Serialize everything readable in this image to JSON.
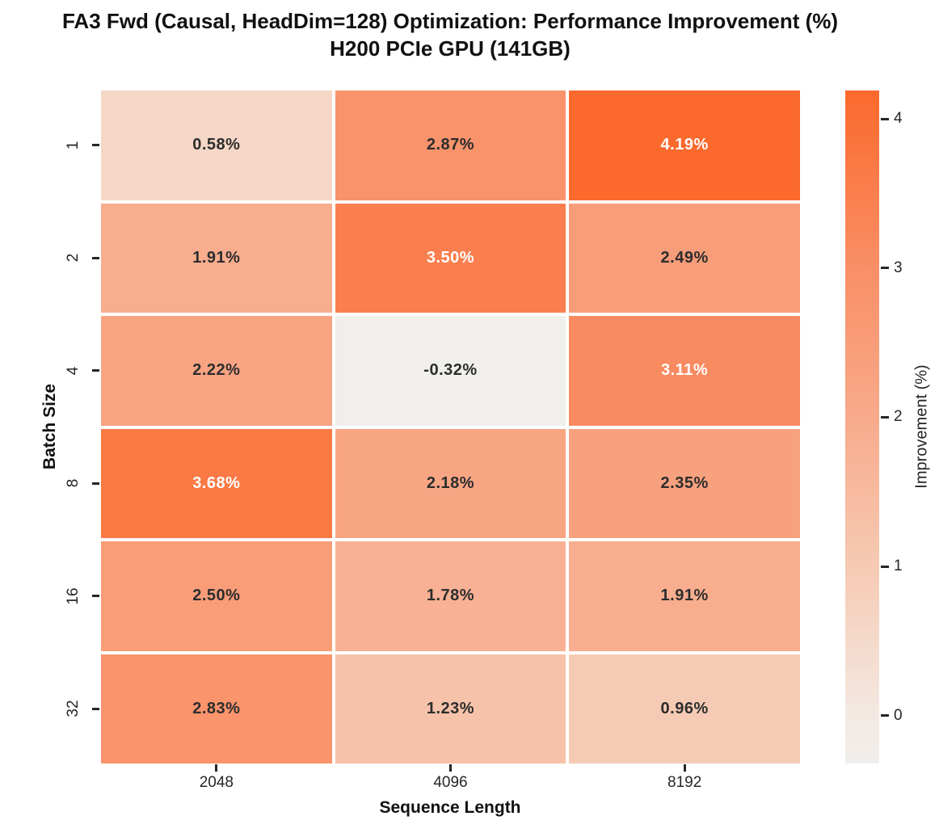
{
  "title": {
    "line1": "FA3 Fwd (Causal, HeadDim=128) Optimization: Performance Improvement (%)",
    "line2": "H200 PCIe GPU (141GB)"
  },
  "chart_data": {
    "type": "heatmap",
    "title": "FA3 Fwd (Causal, HeadDim=128) Optimization: Performance Improvement (%)",
    "subtitle": "H200 PCIe GPU (141GB)",
    "xlabel": "Sequence Length",
    "ylabel": "Batch Size",
    "x_categories": [
      "2048",
      "4096",
      "8192"
    ],
    "y_categories": [
      "1",
      "2",
      "4",
      "8",
      "16",
      "32"
    ],
    "values": [
      [
        0.58,
        2.87,
        4.19
      ],
      [
        1.91,
        3.5,
        2.49
      ],
      [
        2.22,
        -0.32,
        3.11
      ],
      [
        3.68,
        2.18,
        2.35
      ],
      [
        2.5,
        1.78,
        1.91
      ],
      [
        2.83,
        1.23,
        0.96
      ]
    ],
    "cell_label_decimals": 2,
    "cell_label_suffix": "%",
    "colorbar": {
      "label": "Improvement (%)",
      "tick_labels": [
        "0",
        "1",
        "2",
        "3",
        "4"
      ],
      "tick_values": [
        0,
        1,
        2,
        3,
        4
      ],
      "vmin": -0.32,
      "vmax": 4.19
    },
    "colormap_stops": [
      {
        "value": -0.32,
        "hex": "#f1efec"
      },
      {
        "value": 0.0,
        "hex": "#f3e9e2"
      },
      {
        "value": 1.0,
        "hex": "#f6cab3"
      },
      {
        "value": 2.0,
        "hex": "#f8aa8b"
      },
      {
        "value": 3.0,
        "hex": "#f98f66"
      },
      {
        "value": 4.19,
        "hex": "#fb692c"
      }
    ],
    "white_text_threshold": 3.0,
    "colors": {
      "dark_text": "#2d2d2d",
      "light_text": "#ffffff",
      "tick": "#262626",
      "background": "#ffffff"
    },
    "grid": false,
    "legend_position": "right-colorbar"
  }
}
